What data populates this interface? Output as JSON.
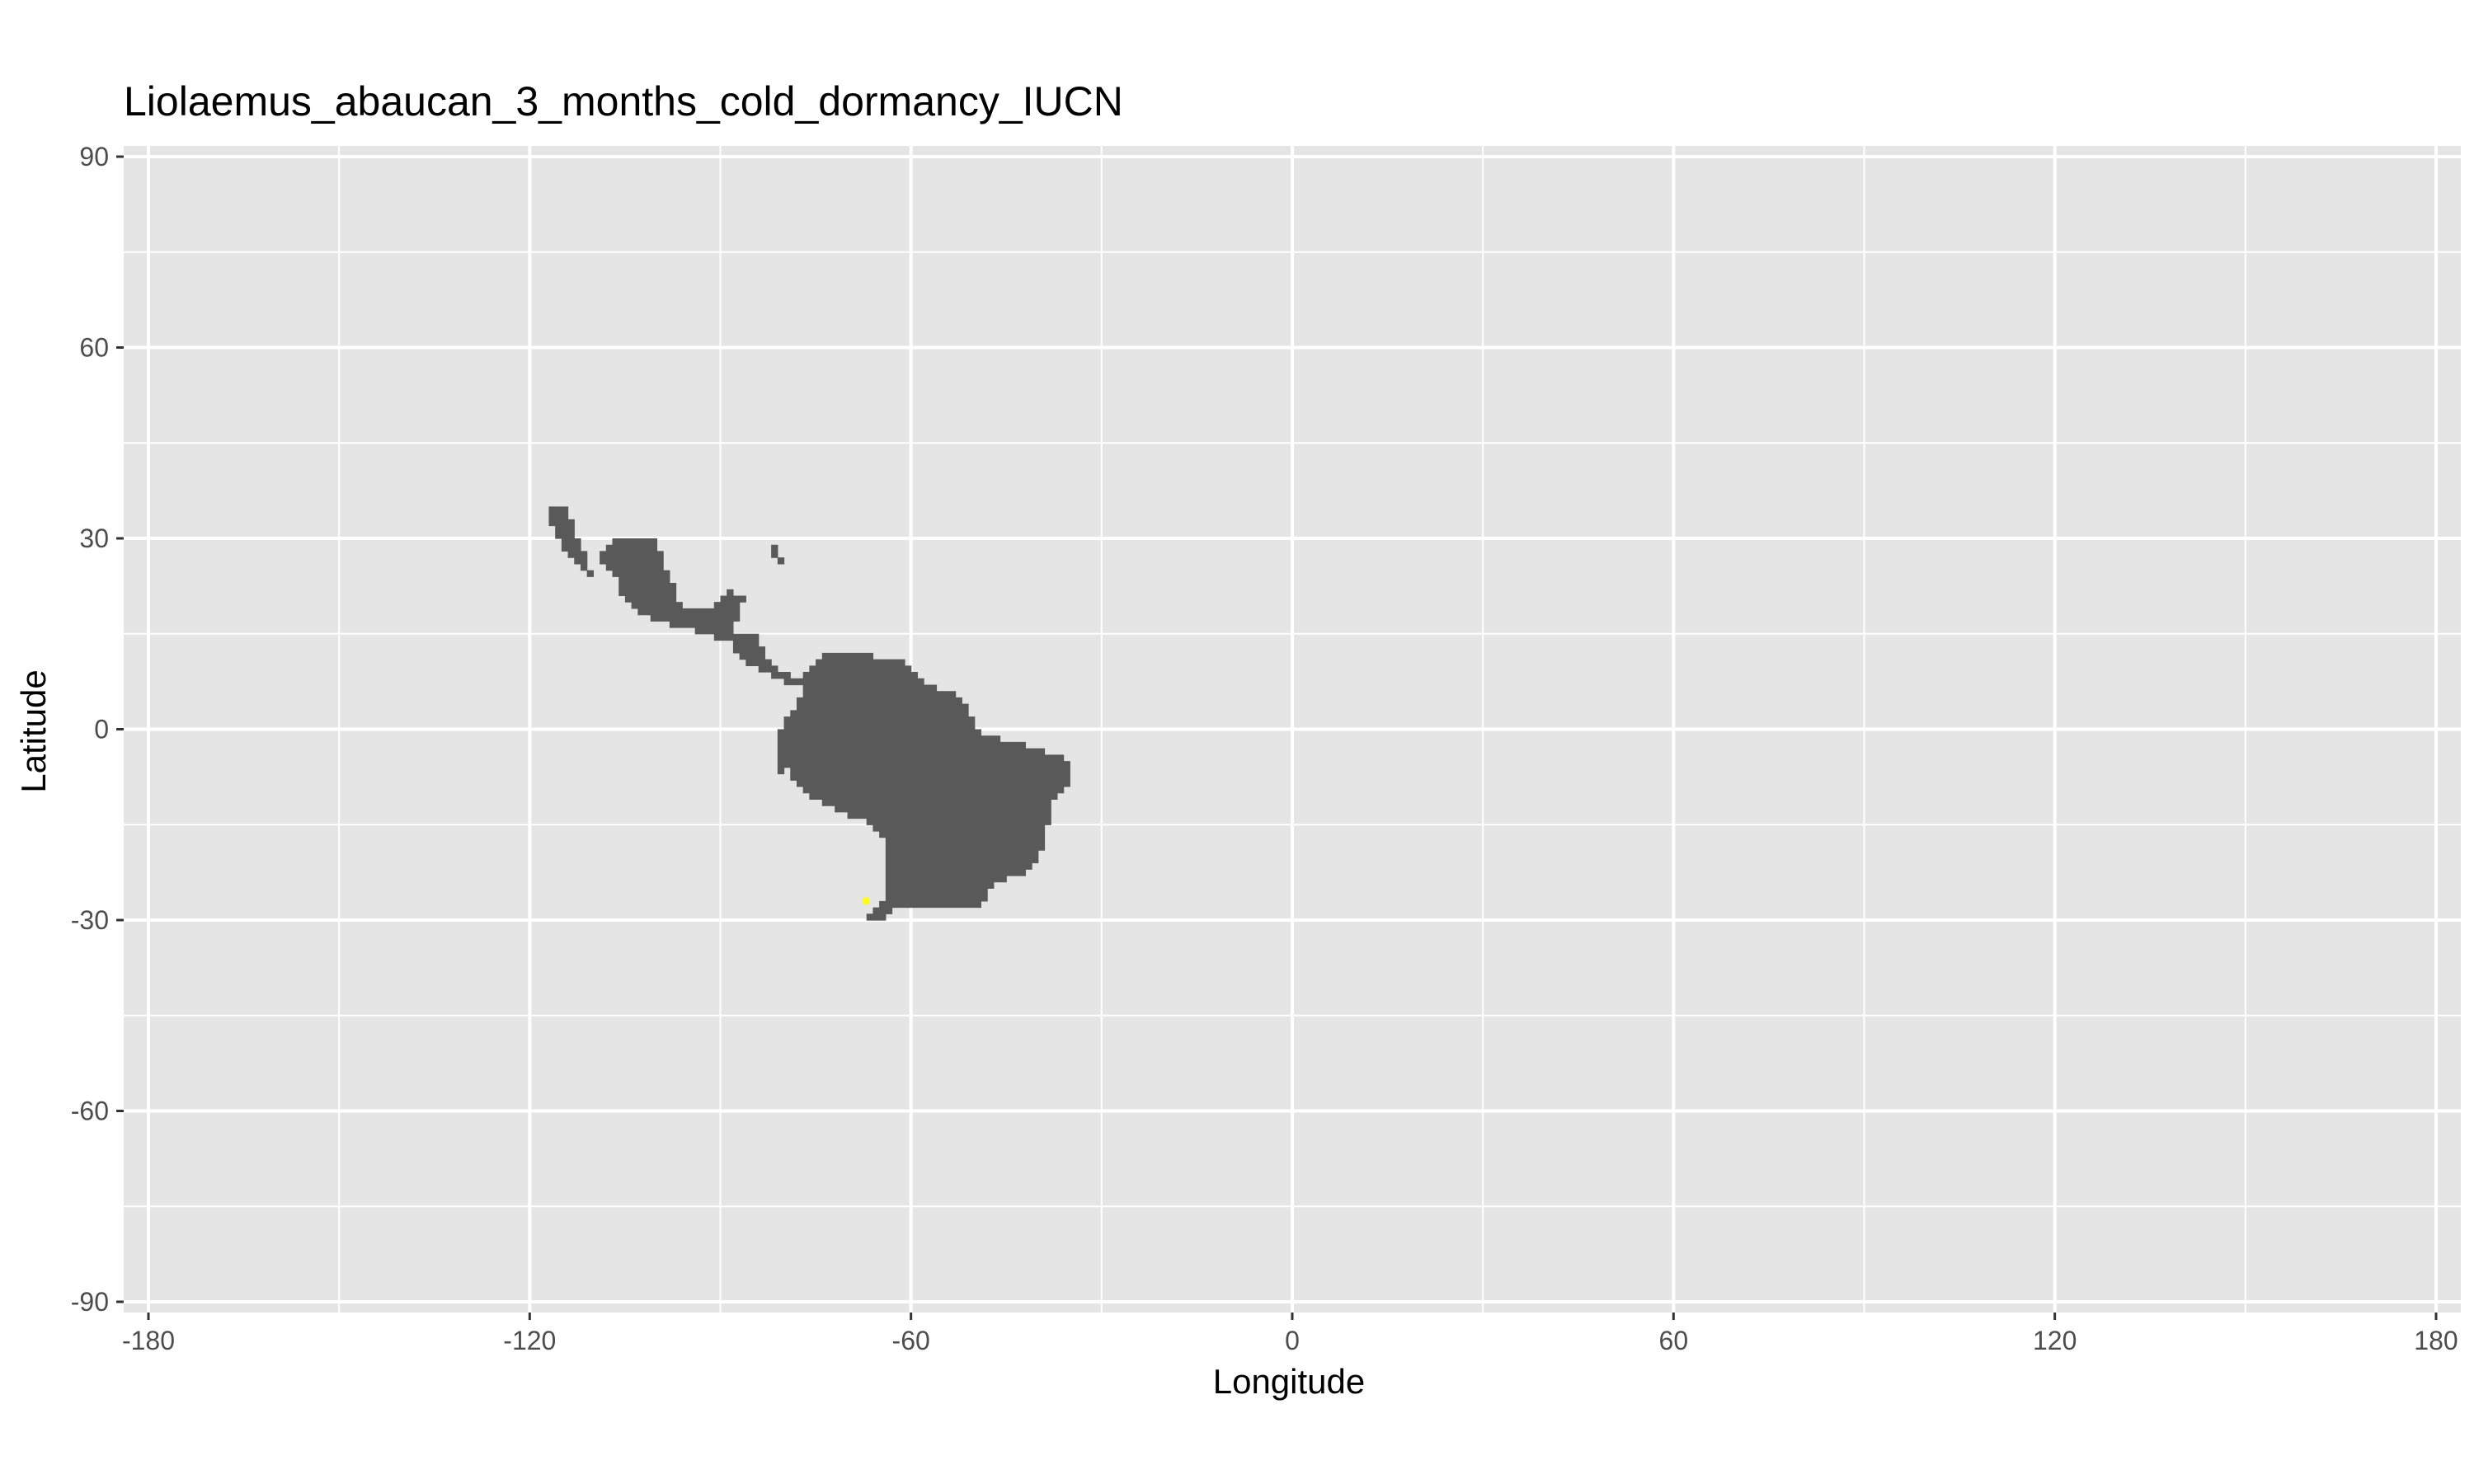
{
  "chart_data": {
    "type": "heatmap",
    "title": "Liolaemus_abaucan_3_months_cold_dormancy_IUCN",
    "xlabel": "Longitude",
    "ylabel": "Latitude",
    "xlim": [
      -180,
      180
    ],
    "ylim": [
      -90,
      90
    ],
    "xticks": [
      -180,
      -120,
      -60,
      0,
      60,
      120,
      180
    ],
    "yticks": [
      90,
      60,
      30,
      0,
      -30,
      -60,
      -90
    ],
    "xtick_labels": [
      "-180",
      "-120",
      "-60",
      "0",
      "60",
      "120",
      "180"
    ],
    "ytick_labels": [
      "90",
      "60",
      "30",
      "0",
      "-30",
      "-60",
      "-90"
    ],
    "grid": true,
    "colors": {
      "panel_background": "#e5e5e5",
      "grid": "#ffffff",
      "land": "#595959",
      "occurrence": "#ffff00"
    },
    "land_regions": [
      {
        "name": "Baja California",
        "polygon": [
          [
            -117,
            35
          ],
          [
            -114,
            35
          ],
          [
            -113,
            31
          ],
          [
            -111,
            27
          ],
          [
            -110,
            24
          ],
          [
            -112,
            25
          ],
          [
            -115,
            29
          ],
          [
            -117,
            33
          ]
        ]
      },
      {
        "name": "Mexico mainland",
        "polygon": [
          [
            -106,
            30
          ],
          [
            -100,
            30
          ],
          [
            -99,
            26
          ],
          [
            -97,
            22
          ],
          [
            -96,
            19
          ],
          [
            -91,
            19
          ],
          [
            -89,
            22
          ],
          [
            -86,
            21
          ],
          [
            -88,
            16
          ],
          [
            -89,
            14
          ],
          [
            -95,
            16
          ],
          [
            -100,
            17
          ],
          [
            -105,
            20
          ],
          [
            -106,
            23
          ],
          [
            -109,
            27
          ]
        ]
      },
      {
        "name": "Florida",
        "polygon": [
          [
            -82,
            29
          ],
          [
            -81,
            29
          ],
          [
            -80,
            26
          ],
          [
            -81,
            26
          ]
        ]
      },
      {
        "name": "Central America",
        "polygon": [
          [
            -89,
            15
          ],
          [
            -84,
            15
          ],
          [
            -83,
            11
          ],
          [
            -80,
            9
          ],
          [
            -77,
            8
          ],
          [
            -78,
            7
          ],
          [
            -81,
            8
          ],
          [
            -85,
            10
          ],
          [
            -88,
            13
          ]
        ]
      },
      {
        "name": "South America",
        "polygon": [
          [
            -78,
            8
          ],
          [
            -73,
            12
          ],
          [
            -70,
            12
          ],
          [
            -62,
            11
          ],
          [
            -57,
            7
          ],
          [
            -52,
            5
          ],
          [
            -50,
            1
          ],
          [
            -48,
            -1
          ],
          [
            -44,
            -2
          ],
          [
            -40,
            -3
          ],
          [
            -35,
            -5
          ],
          [
            -35,
            -8
          ],
          [
            -38,
            -12
          ],
          [
            -39,
            -18
          ],
          [
            -40,
            -21
          ],
          [
            -43,
            -23
          ],
          [
            -46,
            -24
          ],
          [
            -48,
            -26
          ],
          [
            -49,
            -28
          ],
          [
            -54,
            -28
          ],
          [
            -59,
            -27.5
          ],
          [
            -62,
            -28
          ],
          [
            -65,
            -30
          ],
          [
            -67,
            -29.5
          ],
          [
            -66,
            -28
          ],
          [
            -64,
            -27
          ],
          [
            -64,
            -17
          ],
          [
            -66,
            -15
          ],
          [
            -71,
            -13
          ],
          [
            -77,
            -10
          ],
          [
            -79,
            -7
          ],
          [
            -81,
            -4
          ],
          [
            -81,
            -3
          ],
          [
            -80,
            -1
          ],
          [
            -80,
            1
          ],
          [
            -78,
            3
          ],
          [
            -77,
            6
          ]
        ]
      },
      {
        "name": "Galapagos",
        "polygon": [
          [
            -81,
            0
          ],
          [
            -80,
            0
          ],
          [
            -80,
            -7
          ],
          [
            -81,
            -7
          ]
        ]
      }
    ],
    "occurrence_points": [
      {
        "lon": -67,
        "lat": -27
      }
    ]
  }
}
